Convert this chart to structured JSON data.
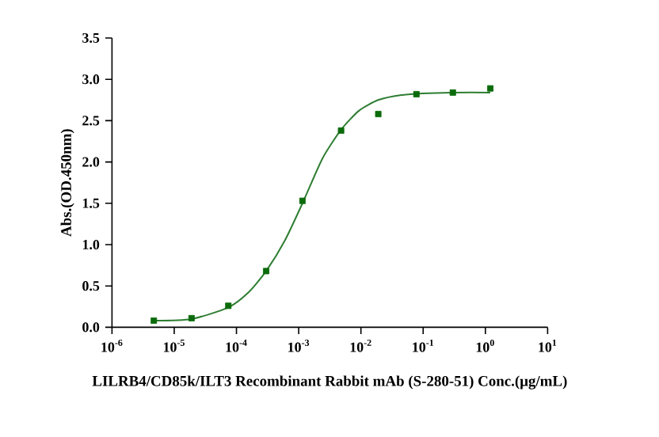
{
  "chart_data": {
    "type": "scatter",
    "xlabel": "LILRB4/CD85k/ILT3 Recombinant Rabbit mAb (S-280-51) Conc.(μg/mL)",
    "ylabel": "Abs.(OD.450nm)",
    "log": "x",
    "grid": false,
    "xlim": [
      1e-06,
      10
    ],
    "ylim": [
      0,
      3.5
    ],
    "xticks": [
      {
        "value": 1e-06,
        "label": "10$^{-6}$"
      },
      {
        "value": 1e-05,
        "label": "10$^{-5}$"
      },
      {
        "value": 0.0001,
        "label": "10$^{-4}$"
      },
      {
        "value": 0.001,
        "label": "10$^{-3}$"
      },
      {
        "value": 0.01,
        "label": "10$^{-2}$"
      },
      {
        "value": 0.1,
        "label": "10$^{-1}$"
      },
      {
        "value": 1,
        "label": "10$^{0}$"
      },
      {
        "value": 10,
        "label": "10$^{1}$"
      }
    ],
    "yticks": [
      {
        "value": 0,
        "label": "0.0"
      },
      {
        "value": 0.5,
        "label": "0.5"
      },
      {
        "value": 1,
        "label": "1.0"
      },
      {
        "value": 1.5,
        "label": "1.5"
      },
      {
        "value": 2,
        "label": "2.0"
      },
      {
        "value": 2.5,
        "label": "2.5"
      },
      {
        "value": 3,
        "label": "3.0"
      },
      {
        "value": 3.5,
        "label": "3.5"
      }
    ],
    "series": [
      {
        "type": "line",
        "color": "#2e7d32",
        "marker": "none",
        "line_style": "solid",
        "x": [
          4.7e-06,
          1.9e-05,
          7.4e-05,
          0.000155,
          0.0003,
          0.0006,
          0.00115,
          0.0024,
          0.0048,
          0.0093,
          0.019,
          0.045,
          0.098,
          0.3,
          1.2
        ],
        "values": [
          0.08,
          0.1,
          0.24,
          0.42,
          0.68,
          1.05,
          1.5,
          2.04,
          2.39,
          2.62,
          2.75,
          2.81,
          2.83,
          2.84,
          2.84
        ]
      },
      {
        "color": "#0b6b0b",
        "marker": "square",
        "x": [
          4.7e-06,
          1.9e-05,
          7.4e-05,
          0.0003,
          0.00115,
          0.0048,
          0.019,
          0.078,
          0.3,
          1.2
        ],
        "values": [
          0.08,
          0.11,
          0.26,
          0.68,
          1.53,
          2.38,
          2.58,
          2.82,
          2.84,
          2.89
        ]
      }
    ]
  }
}
